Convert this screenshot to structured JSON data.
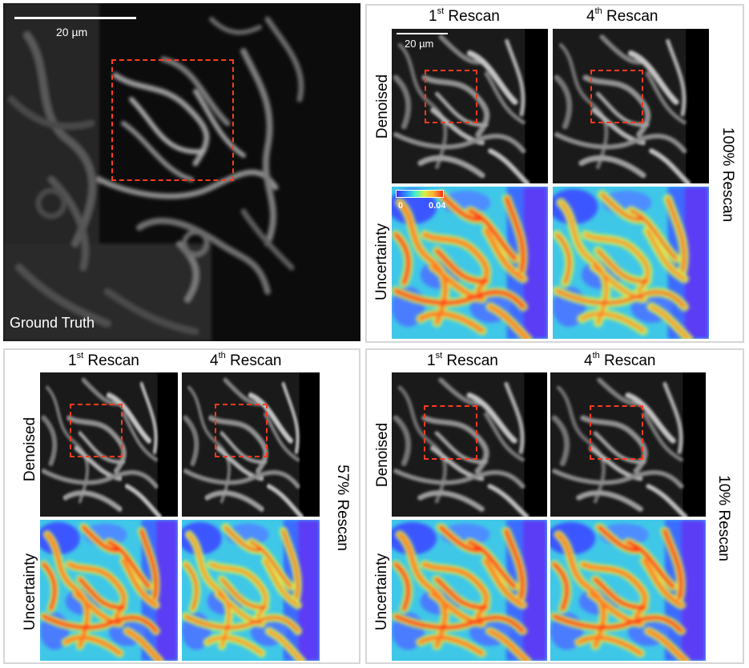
{
  "ground_truth": {
    "label": "Ground Truth",
    "scalebar_label": "20 µm"
  },
  "col_headers": {
    "first": {
      "ordinal": "1",
      "suffix": "st",
      "text": "Rescan"
    },
    "fourth": {
      "ordinal": "4",
      "suffix": "th",
      "text": "Rescan"
    }
  },
  "row_labels": {
    "denoised": "Denoised",
    "uncertainty": "Uncertainty"
  },
  "panels": {
    "p100": {
      "side_label": "100% Rescan",
      "scalebar_label": "20 µm"
    },
    "p57": {
      "side_label": "57% Rescan"
    },
    "p10": {
      "side_label": "10% Rescan"
    }
  },
  "colorbar": {
    "min_label": "0",
    "max_label": "0.04"
  },
  "colors": {
    "roi": "#ff3b1f",
    "frame": "#d6d6d6"
  }
}
